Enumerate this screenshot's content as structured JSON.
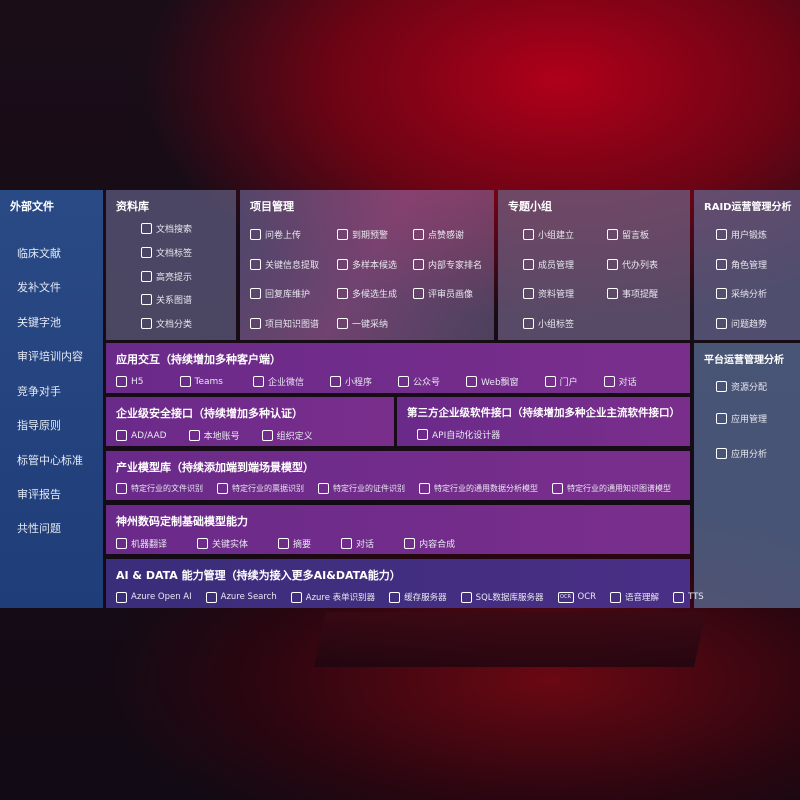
{
  "external": {
    "title": "外部文件",
    "items": [
      "临床文献",
      "发补文件",
      "关键字池",
      "审评培训内容",
      "竞争对手",
      "指导原则",
      "标管中心标准",
      "审评报告",
      "共性问题"
    ]
  },
  "library": {
    "title": "资料库",
    "items": [
      "文档搜索",
      "文档标签",
      "高亮提示",
      "关系图谱",
      "文档分类"
    ]
  },
  "project": {
    "title": "项目管理",
    "items": [
      "问卷上传",
      "到期预警",
      "点赞感谢",
      "关键信息提取",
      "多样本候选",
      "内部专家排名",
      "回复库维护",
      "多候选生成",
      "评审员画像",
      "项目知识图谱",
      "一键采纳"
    ]
  },
  "group": {
    "title": "专题小组",
    "items": [
      "小组建立",
      "留言板",
      "成员管理",
      "代办列表",
      "资料管理",
      "事项提醒",
      "小组标签"
    ]
  },
  "raid": {
    "title": "RAID运营管理分析",
    "items": [
      "用户锻炼",
      "角色管理",
      "采纳分析",
      "问题趋势"
    ]
  },
  "platform": {
    "title": "平台运营管理分析",
    "items": [
      "资源分配",
      "应用管理",
      "应用分析"
    ]
  },
  "app": {
    "title": "应用交互（持续增加多种客户端）",
    "items": [
      "H5",
      "Teams",
      "企业微信",
      "小程序",
      "公众号",
      "Web飘窗",
      "门户",
      "对话"
    ]
  },
  "security": {
    "title": "企业级安全接口（持续增加多种认证）",
    "items": [
      "AD/AAD",
      "本地账号",
      "组织定义"
    ]
  },
  "thirdparty": {
    "title": "第三方企业级软件接口（持续增加多种企业主流软件接口）",
    "items": [
      "API自动化设计器"
    ]
  },
  "industry": {
    "title": "产业模型库（持续添加端到端场景模型）",
    "items": [
      "特定行业的文件识别",
      "特定行业的票据识别",
      "特定行业的证件识别",
      "特定行业的通用数据分析模型",
      "特定行业的通用知识图谱模型"
    ]
  },
  "base": {
    "title": "神州数码定制基础模型能力",
    "items": [
      "机器翻译",
      "关键实体",
      "摘要",
      "对话",
      "内容合成"
    ]
  },
  "ai": {
    "title": "AI & DATA 能力管理（持续为接入更多AI&DATA能力）",
    "items": [
      "Azure Open AI",
      "Azure Search",
      "Azure 表单识别器",
      "缓存服务器",
      "SQL数据库服务器",
      "OCR",
      "语音理解",
      "TTS"
    ],
    "ocr_icon": "OCR"
  }
}
